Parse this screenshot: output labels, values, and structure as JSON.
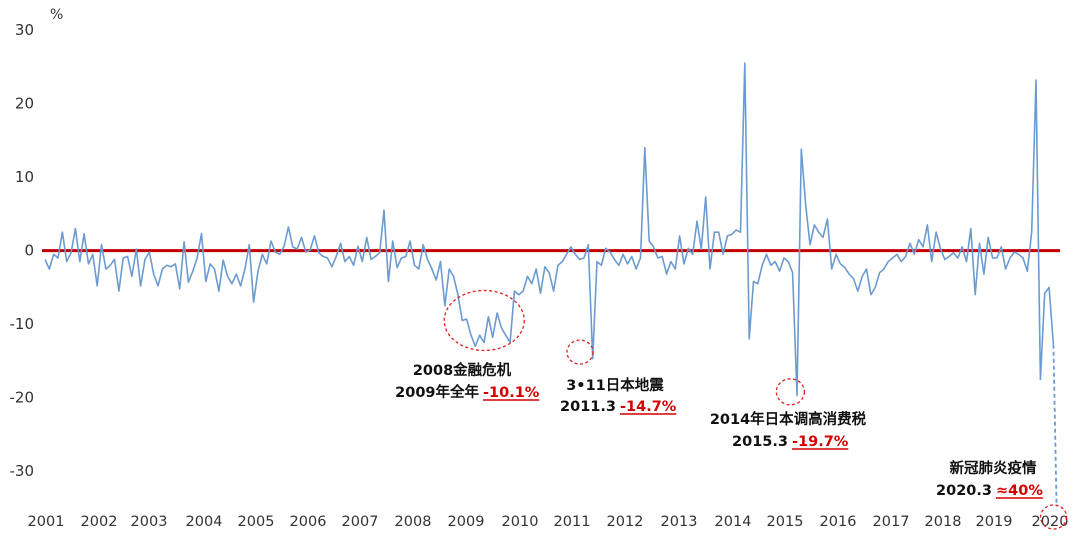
{
  "chart_data": {
    "type": "line",
    "y_unit": "%",
    "ylim": [
      -35,
      30
    ],
    "y_ticks": [
      30,
      20,
      10,
      0,
      -10,
      -20,
      -30
    ],
    "y_tick_labels": [
      "30",
      "20",
      "10",
      "0",
      "-10",
      "-20",
      "-30"
    ],
    "x_ticks": [
      "2001",
      "2002",
      "2003",
      "2004",
      "2005",
      "2006",
      "2007",
      "2008",
      "2009",
      "2010",
      "2011",
      "2012",
      "2013",
      "2014",
      "2015",
      "2016",
      "2017",
      "2018",
      "2019",
      "2020"
    ],
    "grid": false,
    "legend": "none",
    "colors": {
      "series": "#6b9bd1",
      "zero_line": "#c00000",
      "highlight": "#d40000",
      "ellipse": "#e02020"
    },
    "baseline": 0,
    "projection": {
      "from": [
        2020.17,
        -12.8
      ],
      "to": [
        2020.23,
        -40
      ]
    },
    "series": [
      {
        "x_start": 2001.0,
        "x_step": 0.0833,
        "values": [
          -1.2,
          -2.5,
          -0.5,
          -1.0,
          2.5,
          -1.5,
          -0.3,
          3.0,
          -1.5,
          2.3,
          -1.8,
          -0.5,
          -4.8,
          0.8,
          -2.5,
          -2.0,
          -1.2,
          -5.5,
          -1.0,
          -0.8,
          -3.5,
          0.2,
          -4.8,
          -1.2,
          -0.2,
          -3.2,
          -4.8,
          -2.5,
          -2.0,
          -2.2,
          -1.8,
          -5.2,
          1.2,
          -4.3,
          -2.8,
          -1.0,
          2.3,
          -4.2,
          -1.8,
          -2.5,
          -5.5,
          -1.3,
          -3.5,
          -4.5,
          -3.2,
          -4.8,
          -2.5,
          0.8,
          -7.0,
          -2.8,
          -0.5,
          -1.8,
          1.3,
          -0.2,
          -0.5,
          0.6,
          3.2,
          0.5,
          0.2,
          1.8,
          -0.2,
          0.1,
          2.0,
          -0.3,
          -0.8,
          -1.0,
          -2.2,
          -0.8,
          1.0,
          -1.5,
          -0.8,
          -2.0,
          0.6,
          -1.5,
          1.8,
          -1.2,
          -0.8,
          -0.3,
          5.5,
          -4.2,
          1.3,
          -2.3,
          -1.0,
          -0.8,
          1.3,
          -2.0,
          -2.5,
          0.8,
          -1.2,
          -2.5,
          -4.0,
          -1.5,
          -7.5,
          -2.5,
          -3.5,
          -6.0,
          -9.5,
          -9.3,
          -11.5,
          -13.0,
          -11.5,
          -12.5,
          -9.0,
          -11.8,
          -8.5,
          -10.5,
          -11.5,
          -12.5,
          -5.5,
          -6.0,
          -5.5,
          -3.5,
          -4.5,
          -2.5,
          -5.8,
          -2.2,
          -3.0,
          -5.5,
          -2.0,
          -1.5,
          -0.5,
          0.5,
          -0.5,
          -1.2,
          -1.0,
          0.8,
          -14.7,
          -1.5,
          -2.0,
          0.3,
          -0.2,
          -1.2,
          -2.0,
          -0.5,
          -1.8,
          -0.8,
          -2.5,
          -1.0,
          14.0,
          1.3,
          0.5,
          -1.0,
          -0.8,
          -3.2,
          -1.5,
          -2.5,
          2.0,
          -1.8,
          0.3,
          -0.5,
          4.0,
          0.2,
          7.3,
          -2.5,
          2.5,
          2.5,
          -0.5,
          2.0,
          2.2,
          2.8,
          2.5,
          25.5,
          -12.0,
          -4.2,
          -4.5,
          -2.0,
          -0.5,
          -2.0,
          -1.5,
          -2.8,
          -1.0,
          -1.5,
          -3.0,
          -19.7,
          13.8,
          6.2,
          0.8,
          3.5,
          2.5,
          1.8,
          4.3,
          -2.5,
          -0.5,
          -1.8,
          -2.3,
          -3.2,
          -3.8,
          -5.5,
          -3.5,
          -2.5,
          -6.0,
          -5.0,
          -3.0,
          -2.5,
          -1.5,
          -1.0,
          -0.5,
          -1.5,
          -0.8,
          1.0,
          -0.5,
          1.5,
          0.5,
          3.5,
          -1.5,
          2.5,
          0.3,
          -1.2,
          -0.8,
          -0.3,
          -1.0,
          0.5,
          -1.5,
          3.0,
          -6.0,
          1.0,
          -3.2,
          1.8,
          -1.0,
          -1.0,
          0.5,
          -2.5,
          -1.0,
          -0.2,
          -0.5,
          -1.0,
          -2.8,
          2.5,
          23.2,
          -17.5,
          -5.8,
          -5.0,
          -12.8
        ],
        "last_x": 2020.17
      }
    ],
    "annotations": [
      {
        "lines": [
          "2008金融危机",
          "2009年全年"
        ],
        "highlight": "-10.1%",
        "ellipse_at": [
          2009.35,
          -9.5
        ]
      },
      {
        "lines": [
          "3•11日本地震",
          "2011.3"
        ],
        "highlight": "-14.7%",
        "ellipse_at": [
          2011.17,
          -13.8
        ]
      },
      {
        "lines": [
          "2014年日本调高消费税",
          "2015.3"
        ],
        "highlight": "-19.7%",
        "ellipse_at": [
          2015.17,
          -19.2
        ]
      },
      {
        "lines": [
          "新冠肺炎疫情",
          "2020.3"
        ],
        "highlight": "≈40%",
        "ellipse_at": [
          2020.23,
          -36.5
        ]
      }
    ]
  }
}
